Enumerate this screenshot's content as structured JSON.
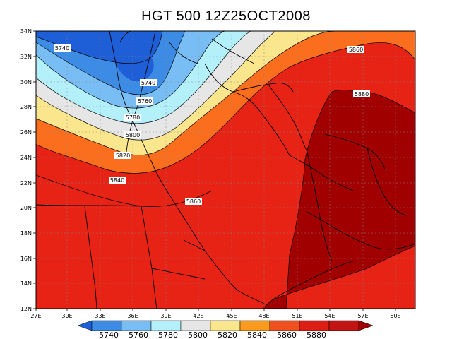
{
  "title": "HGT 500 12Z25OCT2008",
  "map": {
    "lon_ticks": [
      "27E",
      "30E",
      "33E",
      "36E",
      "39E",
      "42E",
      "45E",
      "48E",
      "51E",
      "54E",
      "57E",
      "60E"
    ],
    "lat_ticks": [
      "12N",
      "14N",
      "16N",
      "18N",
      "20N",
      "22N",
      "24N",
      "26N",
      "28N",
      "30N",
      "32N",
      "34N"
    ],
    "contour_labels": {
      "c5740a": "5740",
      "c5740b": "5740",
      "c5760": "5760",
      "c5780": "5780",
      "c5800": "5800",
      "c5820": "5820",
      "c5840": "5840",
      "c5860a": "5860",
      "c5860b": "5860",
      "c5880": "5880"
    }
  },
  "colorbar": {
    "labels": [
      "5740",
      "5760",
      "5780",
      "5800",
      "5820",
      "5840",
      "5860",
      "5880"
    ],
    "colors": [
      "#1e5ed7",
      "#3c8ce6",
      "#78bef5",
      "#b4f0fa",
      "#e6e6e6",
      "#fae68c",
      "#fa9b1e",
      "#f0501e",
      "#dc1e14",
      "#a00000"
    ]
  },
  "colors": {
    "band_5740_low": "#1e5ed7",
    "band_5740_5760": "#3c8ce6",
    "band_5760_5780": "#78bef5",
    "band_5780_5800": "#b4f0fa",
    "band_5800_5820": "#e6e6e6",
    "band_5820_5840": "#fae68c",
    "band_5840_5860": "#fa6e1e",
    "band_5860_5880": "#e62314",
    "band_5880_high": "#a00000"
  }
}
